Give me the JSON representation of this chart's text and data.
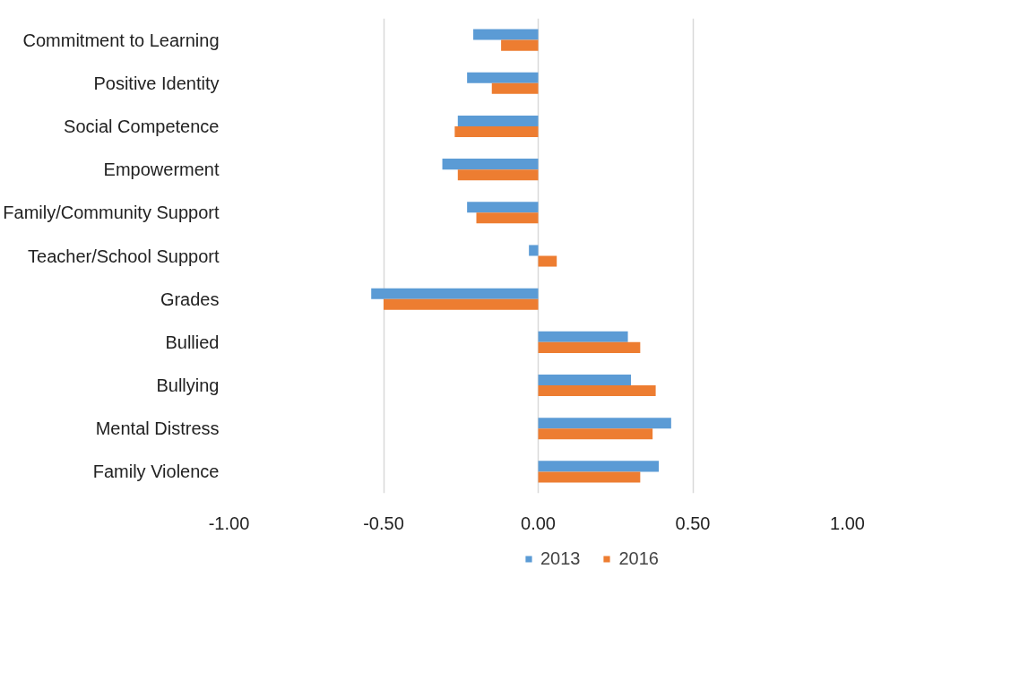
{
  "chart_data": {
    "type": "bar",
    "orientation": "horizontal",
    "categories": [
      "Commitment to Learning",
      "Positive Identity",
      "Social Competence",
      "Empowerment",
      "Family/Community Support",
      "Teacher/School Support",
      "Grades",
      "Bullied",
      "Bullying",
      "Mental Distress",
      "Family Violence"
    ],
    "series": [
      {
        "name": "2013",
        "color": "#5b9bd5",
        "values": [
          -0.21,
          -0.23,
          -0.26,
          -0.31,
          -0.23,
          -0.03,
          -0.54,
          0.29,
          0.3,
          0.43,
          0.39
        ]
      },
      {
        "name": "2016",
        "color": "#ed7d31",
        "values": [
          -0.12,
          -0.15,
          -0.27,
          -0.26,
          -0.2,
          0.06,
          -0.5,
          0.33,
          0.38,
          0.37,
          0.33
        ]
      }
    ],
    "xlim": [
      -1.0,
      1.0
    ],
    "xticks": [
      {
        "value": -1.0,
        "label": "-1.00"
      },
      {
        "value": -0.5,
        "label": "-0.50"
      },
      {
        "value": 0.0,
        "label": "0.00"
      },
      {
        "value": 0.5,
        "label": "0.50"
      },
      {
        "value": 1.0,
        "label": "1.00"
      }
    ],
    "grid": "x",
    "legend": "bottom"
  }
}
